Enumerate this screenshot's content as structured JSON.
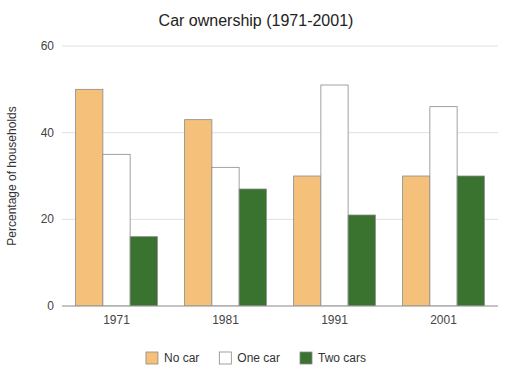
{
  "chart_data": {
    "type": "bar",
    "title": "Car ownership (1971-2001)",
    "ylabel": "Percentage of households",
    "categories": [
      "1971",
      "1981",
      "1991",
      "2001"
    ],
    "series": [
      {
        "name": "No car",
        "color": "#F5C07A",
        "values": [
          50,
          43,
          30,
          30
        ]
      },
      {
        "name": "One car",
        "color": "#FFFFFF",
        "values": [
          35,
          32,
          51,
          46
        ]
      },
      {
        "name": "Two cars",
        "color": "#3A7230",
        "values": [
          16,
          27,
          21,
          30
        ]
      }
    ],
    "ylim": [
      0,
      60
    ],
    "yticks": [
      0,
      20,
      40,
      60
    ],
    "grid": true,
    "legend": "bottom"
  }
}
